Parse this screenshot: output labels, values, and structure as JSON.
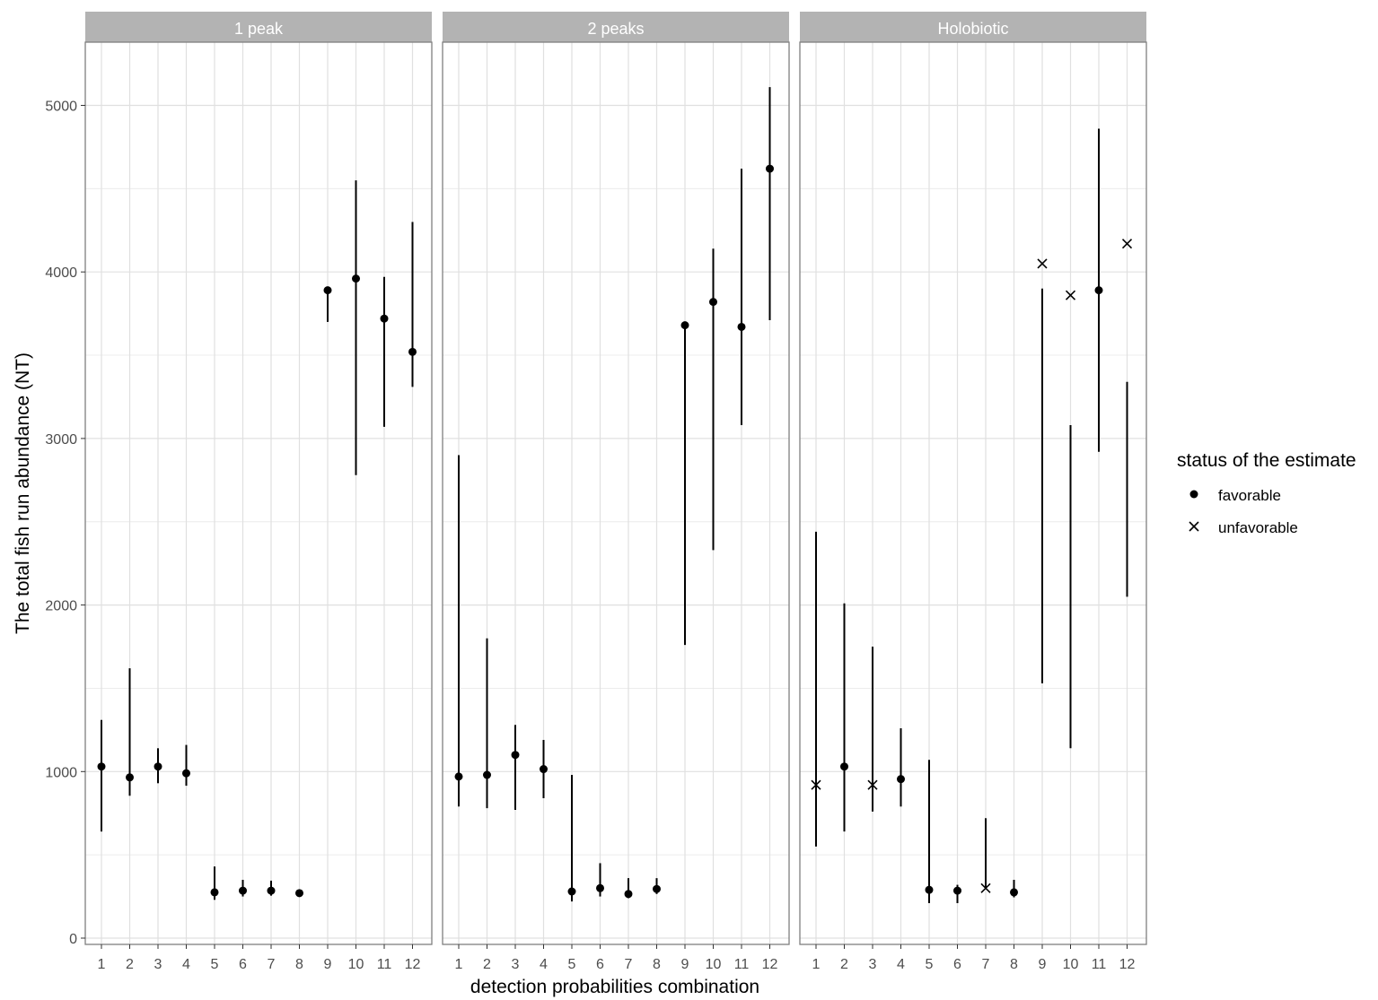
{
  "chart_data": {
    "type": "scatter",
    "subtype": "faceted point-range",
    "xlabel": "detection probabilities combination",
    "ylabel": "The total fish run abundance (NT)",
    "ylim": [
      0,
      5500
    ],
    "y_ticks": [
      0,
      1000,
      2000,
      3000,
      4000,
      5000
    ],
    "y_tick_labels": [
      "0",
      "1000",
      "2000",
      "3000",
      "4000",
      "5000"
    ],
    "x_ticks": [
      1,
      2,
      3,
      4,
      5,
      6,
      7,
      8,
      9,
      10,
      11,
      12
    ],
    "x_tick_labels": [
      "1",
      "2",
      "3",
      "4",
      "5",
      "6",
      "7",
      "8",
      "9",
      "10",
      "11",
      "12"
    ],
    "grid": true,
    "legend": {
      "title": "status of the estimate",
      "position": "right",
      "entries": [
        {
          "label": "favorable",
          "shape": "point"
        },
        {
          "label": "unfavorable",
          "shape": "cross"
        }
      ]
    },
    "colors": {
      "strip": "#b3b3b3",
      "strip_text": "#ffffff",
      "grid": "#e0e0e0",
      "mark": "#000000",
      "panel_border": "#7f7f7f",
      "axis_text": "#4d4d4d"
    },
    "facets": [
      {
        "label": "1 peak",
        "points": [
          {
            "x": 1,
            "y": 1030,
            "low": 640,
            "high": 1310,
            "status": "favorable"
          },
          {
            "x": 2,
            "y": 965,
            "low": 855,
            "high": 1620,
            "status": "favorable"
          },
          {
            "x": 3,
            "y": 1030,
            "low": 930,
            "high": 1140,
            "status": "favorable"
          },
          {
            "x": 4,
            "y": 990,
            "low": 915,
            "high": 1160,
            "status": "favorable"
          },
          {
            "x": 5,
            "y": 275,
            "low": 230,
            "high": 430,
            "status": "favorable"
          },
          {
            "x": 6,
            "y": 285,
            "low": 250,
            "high": 350,
            "status": "favorable"
          },
          {
            "x": 7,
            "y": 285,
            "low": 255,
            "high": 345,
            "status": "favorable"
          },
          {
            "x": 8,
            "y": 270,
            "low": 255,
            "high": 290,
            "status": "favorable"
          },
          {
            "x": 9,
            "y": 3890,
            "low": 3700,
            "high": 3890,
            "status": "favorable"
          },
          {
            "x": 10,
            "y": 3960,
            "low": 2780,
            "high": 4550,
            "status": "favorable"
          },
          {
            "x": 11,
            "y": 3720,
            "low": 3070,
            "high": 3970,
            "status": "favorable"
          },
          {
            "x": 12,
            "y": 3520,
            "low": 3310,
            "high": 4300,
            "status": "favorable"
          }
        ]
      },
      {
        "label": "2 peaks",
        "points": [
          {
            "x": 1,
            "y": 970,
            "low": 790,
            "high": 2900,
            "status": "favorable"
          },
          {
            "x": 2,
            "y": 980,
            "low": 780,
            "high": 1800,
            "status": "favorable"
          },
          {
            "x": 3,
            "y": 1100,
            "low": 770,
            "high": 1280,
            "status": "favorable"
          },
          {
            "x": 4,
            "y": 1015,
            "low": 840,
            "high": 1190,
            "status": "favorable"
          },
          {
            "x": 5,
            "y": 280,
            "low": 220,
            "high": 980,
            "status": "favorable"
          },
          {
            "x": 6,
            "y": 300,
            "low": 250,
            "high": 450,
            "status": "favorable"
          },
          {
            "x": 7,
            "y": 265,
            "low": 240,
            "high": 360,
            "status": "favorable"
          },
          {
            "x": 8,
            "y": 295,
            "low": 265,
            "high": 360,
            "status": "favorable"
          },
          {
            "x": 9,
            "y": 3680,
            "low": 1760,
            "high": 3680,
            "status": "favorable"
          },
          {
            "x": 10,
            "y": 3820,
            "low": 2330,
            "high": 4140,
            "status": "favorable"
          },
          {
            "x": 11,
            "y": 3670,
            "low": 3080,
            "high": 4620,
            "status": "favorable"
          },
          {
            "x": 12,
            "y": 4620,
            "low": 3710,
            "high": 5110,
            "status": "favorable"
          }
        ]
      },
      {
        "label": "Holobiotic",
        "points": [
          {
            "x": 1,
            "y": 920,
            "low": 550,
            "high": 2440,
            "status": "unfavorable"
          },
          {
            "x": 2,
            "y": 1030,
            "low": 640,
            "high": 2010,
            "status": "favorable"
          },
          {
            "x": 3,
            "y": 920,
            "low": 760,
            "high": 1750,
            "status": "unfavorable"
          },
          {
            "x": 4,
            "y": 955,
            "low": 790,
            "high": 1260,
            "status": "favorable"
          },
          {
            "x": 5,
            "y": 290,
            "low": 210,
            "high": 1070,
            "status": "favorable"
          },
          {
            "x": 6,
            "y": 285,
            "low": 210,
            "high": 320,
            "status": "favorable"
          },
          {
            "x": 7,
            "y": 300,
            "low": 300,
            "high": 720,
            "status": "unfavorable"
          },
          {
            "x": 8,
            "y": 275,
            "low": 245,
            "high": 350,
            "status": "favorable"
          },
          {
            "x": 9,
            "y": 4050,
            "low": 1530,
            "high": 3900,
            "status": "unfavorable"
          },
          {
            "x": 10,
            "y": 3860,
            "low": 1140,
            "high": 3080,
            "status": "unfavorable"
          },
          {
            "x": 11,
            "y": 3890,
            "low": 2920,
            "high": 4860,
            "status": "favorable"
          },
          {
            "x": 12,
            "y": 4170,
            "low": 2050,
            "high": 3340,
            "status": "unfavorable"
          }
        ]
      }
    ]
  }
}
